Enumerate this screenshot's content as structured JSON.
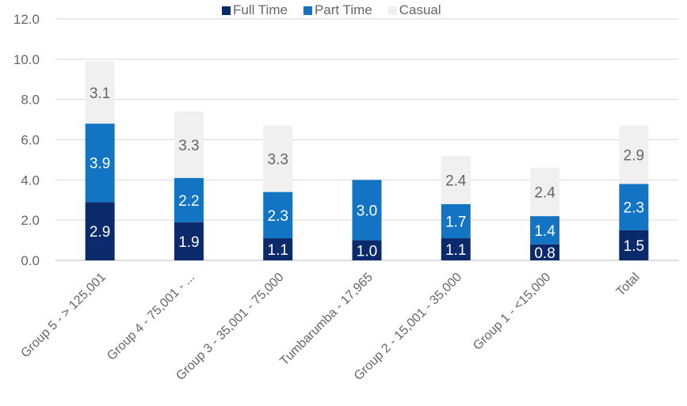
{
  "chart_data": {
    "type": "bar",
    "stacked": true,
    "categories": [
      "Group 5 - > 125,001",
      "Group 4 - 75,001 - ...",
      "Group 3 - 35,001 - 75,000",
      "Tumbarumba - 17,965",
      "Group 2 -  15,001 - 35,000",
      "Group 1 - <15,000",
      "Total"
    ],
    "series": [
      {
        "name": "Full Time",
        "color": "#0b2a6b",
        "label_color": "#ffffff",
        "values": [
          2.9,
          1.9,
          1.1,
          1.0,
          1.1,
          0.8,
          1.5
        ]
      },
      {
        "name": "Part Time",
        "color": "#1474c4",
        "label_color": "#ffffff",
        "values": [
          3.9,
          2.2,
          2.3,
          3.0,
          1.7,
          1.4,
          2.3
        ]
      },
      {
        "name": "Casual",
        "color": "#f0f0f0",
        "label_color": "#666666",
        "values": [
          3.1,
          3.3,
          3.3,
          0,
          2.4,
          2.4,
          2.9
        ]
      }
    ],
    "ylim": [
      0,
      12
    ],
    "yticks": [
      "0.0",
      "2.0",
      "4.0",
      "6.0",
      "8.0",
      "10.0",
      "12.0"
    ],
    "legend_position": "top",
    "grid": true
  }
}
